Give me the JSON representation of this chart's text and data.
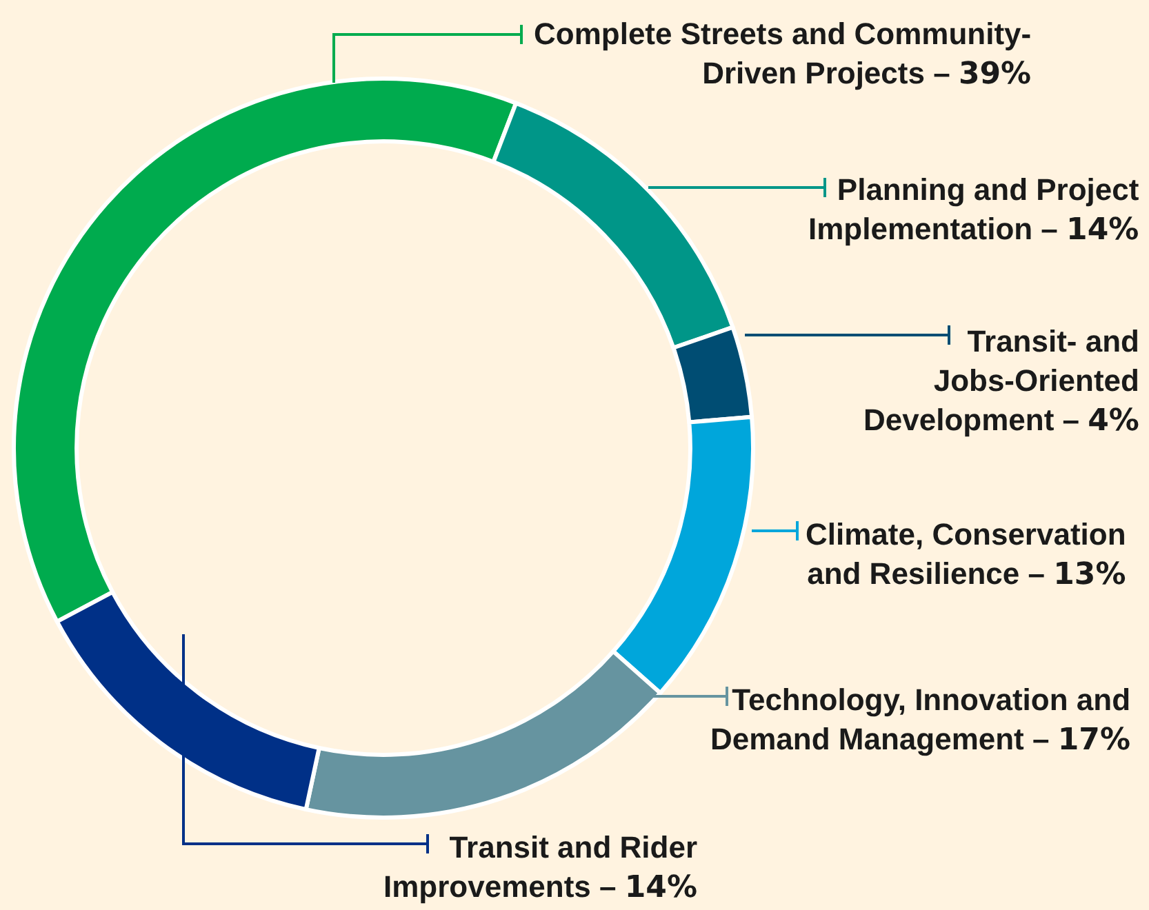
{
  "chart_data": {
    "type": "donut",
    "categories": [
      "Complete Streets and Community-Driven Projects – 39%",
      "Planning and Project Implementation – 14%",
      "Transit- and Jobs-Oriented Development – 4%",
      "Climate, Conservation and Resilience – 13%",
      "Technology, Innovation and Demand Management – 17%",
      "Transit and Rider Improvements – 14%"
    ],
    "values": [
      39,
      14,
      4,
      13,
      17,
      14
    ],
    "colors": [
      "#00ab4e",
      "#009688",
      "#004d73",
      "#00a6db",
      "#6694a0",
      "#003087"
    ],
    "legend": "right"
  }
}
